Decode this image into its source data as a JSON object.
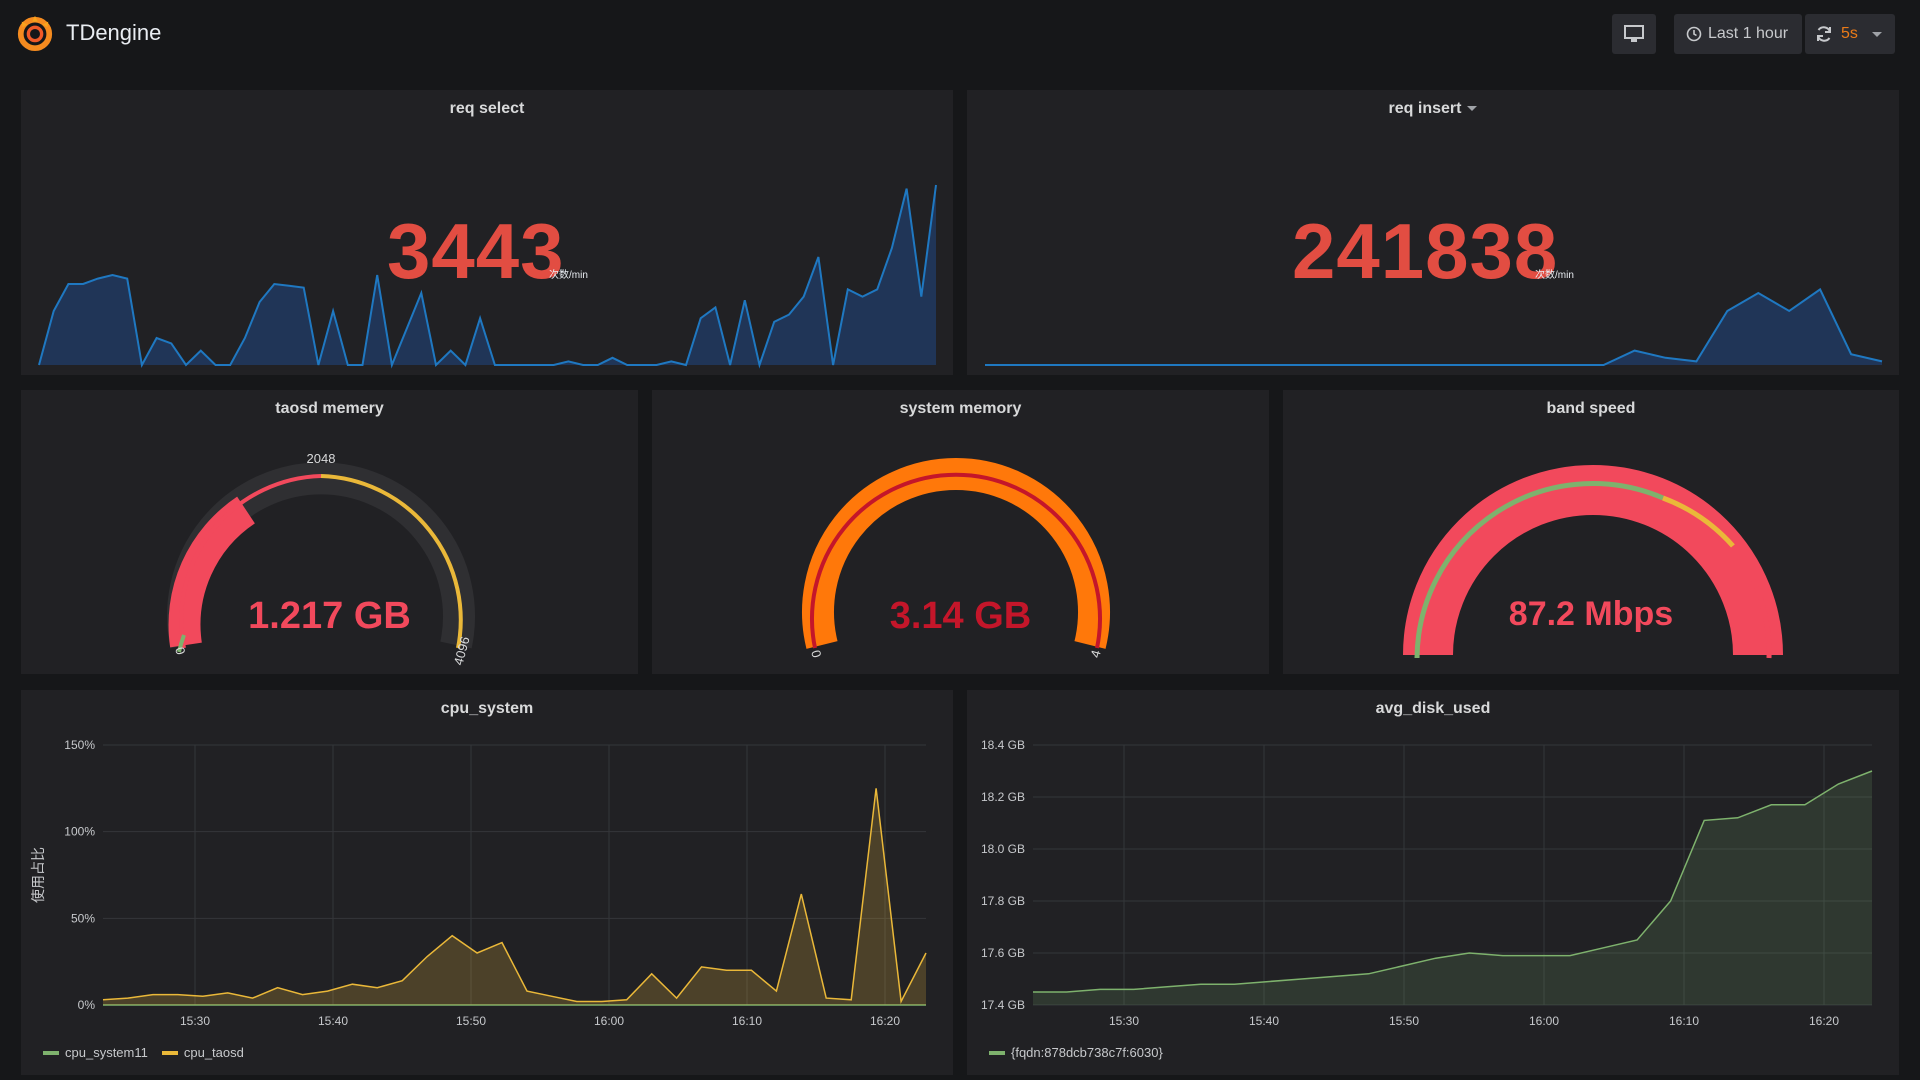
{
  "app": {
    "title": "TDengine"
  },
  "toolbar": {
    "time_range": "Last 1 hour",
    "refresh_interval": "5s"
  },
  "colors": {
    "accent_red": "#e24d42",
    "gauge_red": "#f2495c",
    "gauge_orange": "#ff780a",
    "series_blue": "#1f78c1",
    "series_yellow": "#eab839",
    "series_green": "#7eb26d"
  },
  "panels": {
    "req_select": {
      "title": "req select",
      "value": "3443",
      "unit": "次数/min"
    },
    "req_insert": {
      "title": "req insert",
      "value": "241838",
      "unit": "次数/min"
    },
    "taosd_memory": {
      "title": "taosd memery",
      "value": "1.217 GB",
      "min_label": "0",
      "max_label": "4096",
      "mid_label": "2048",
      "fraction": 0.3
    },
    "system_memory": {
      "title": "system memory",
      "value": "3.14 GB",
      "min_label": "0",
      "max_label": "4",
      "fraction": 0.785
    },
    "band_speed": {
      "title": "band speed",
      "value": "87.2 Mbps",
      "fraction": 0.872
    },
    "cpu_system": {
      "title": "cpu_system",
      "ylabel": "使用占比",
      "legend": [
        "cpu_system11",
        "cpu_taosd"
      ]
    },
    "avg_disk_used": {
      "title": "avg_disk_used",
      "legend": [
        "{fqdn:878dcb738c7f:6030}"
      ]
    }
  },
  "chart_data": [
    {
      "type": "area",
      "title": "req select",
      "x": [
        0,
        1,
        2,
        3,
        4,
        5,
        6,
        7,
        8,
        9,
        10,
        11,
        12,
        13,
        14,
        15,
        16,
        17,
        18,
        19,
        20,
        21,
        22,
        23,
        24,
        25,
        26,
        27,
        28,
        29,
        30,
        31,
        32,
        33,
        34,
        35,
        36,
        37,
        38,
        39,
        40,
        41,
        42,
        43,
        44,
        45,
        46,
        47,
        48,
        49,
        50,
        51,
        52,
        53,
        54,
        55,
        56,
        57,
        58,
        59,
        60,
        61
      ],
      "series": [
        {
          "values": [
            0,
            30,
            45,
            45,
            48,
            50,
            48,
            0,
            15,
            12,
            0,
            8,
            0,
            0,
            15,
            35,
            45,
            44,
            43,
            0,
            30,
            0,
            0,
            50,
            0,
            20,
            40,
            0,
            8,
            0,
            26,
            0,
            0,
            0,
            0,
            0,
            2,
            0,
            0,
            4,
            0,
            0,
            0,
            2,
            0,
            26,
            32,
            0,
            36,
            0,
            24,
            28,
            38,
            60,
            0,
            42,
            38,
            42,
            65,
            98,
            38,
            100
          ]
        }
      ]
    },
    {
      "type": "area",
      "title": "req insert",
      "x": [
        0,
        1,
        2,
        3,
        4,
        5,
        6,
        7,
        8,
        9,
        10,
        11,
        12,
        13,
        14,
        15,
        16,
        17,
        18,
        19,
        20,
        21,
        22,
        23,
        24,
        25,
        26,
        27,
        28,
        29
      ],
      "series": [
        {
          "values": [
            0,
            0,
            0,
            0,
            0,
            0,
            0,
            0,
            0,
            0,
            0,
            0,
            0,
            0,
            0,
            0,
            0,
            0,
            0,
            0,
            0,
            8,
            4,
            2,
            30,
            40,
            30,
            42,
            6,
            2
          ]
        }
      ]
    },
    {
      "type": "line",
      "title": "cpu_system",
      "xlabel": "",
      "ylabel": "使用占比",
      "x_ticks": [
        "15:30",
        "15:40",
        "15:50",
        "16:00",
        "16:10",
        "16:20"
      ],
      "y_ticks": [
        "0%",
        "50%",
        "100%",
        "150%"
      ],
      "ylim": [
        0,
        150
      ],
      "series": [
        {
          "name": "cpu_system11",
          "values": [
            0,
            0,
            0,
            0,
            0,
            0,
            0,
            0,
            0,
            0,
            0,
            0,
            0,
            0,
            0,
            0,
            0,
            0,
            0,
            0,
            0,
            0,
            0,
            0,
            0,
            0,
            0,
            0,
            0,
            0
          ]
        },
        {
          "name": "cpu_taosd",
          "values": [
            3,
            4,
            6,
            6,
            5,
            7,
            4,
            10,
            6,
            8,
            12,
            10,
            14,
            28,
            40,
            30,
            36,
            8,
            5,
            2,
            2,
            3,
            18,
            4,
            22,
            20,
            20,
            8,
            64,
            4,
            3,
            125,
            2,
            30
          ]
        }
      ]
    },
    {
      "type": "line",
      "title": "avg_disk_used",
      "x_ticks": [
        "15:30",
        "15:40",
        "15:50",
        "16:00",
        "16:10",
        "16:20"
      ],
      "y_ticks": [
        "17.4 GB",
        "17.6 GB",
        "17.8 GB",
        "18.0 GB",
        "18.2 GB",
        "18.4 GB"
      ],
      "ylim": [
        17.4,
        18.4
      ],
      "series": [
        {
          "name": "{fqdn:878dcb738c7f:6030}",
          "values": [
            17.45,
            17.45,
            17.46,
            17.46,
            17.47,
            17.48,
            17.48,
            17.49,
            17.5,
            17.51,
            17.52,
            17.55,
            17.58,
            17.6,
            17.59,
            17.59,
            17.59,
            17.62,
            17.65,
            17.8,
            18.11,
            18.12,
            18.17,
            18.17,
            18.25,
            18.3
          ]
        }
      ]
    }
  ]
}
